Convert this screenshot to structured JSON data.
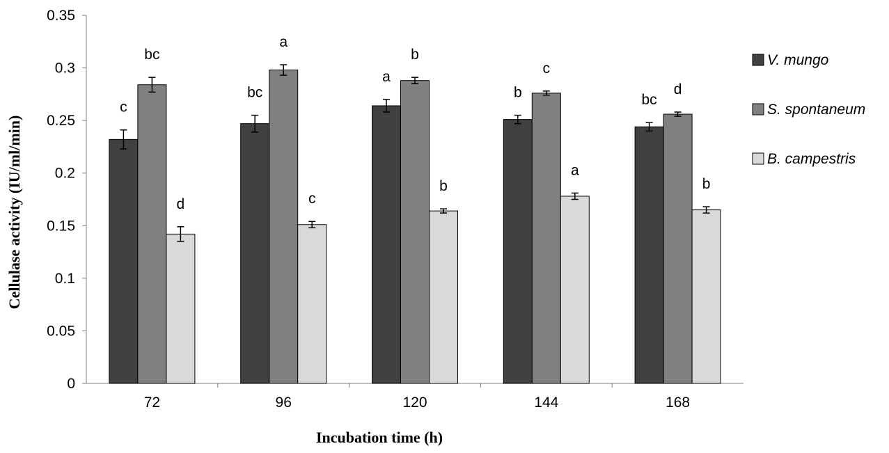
{
  "chart_data": {
    "type": "bar",
    "title": "",
    "xlabel": "Incubation time (h)",
    "ylabel": "Cellulase activity (IU/ml/min)",
    "categories": [
      "72",
      "96",
      "120",
      "144",
      "168"
    ],
    "ylim": [
      0,
      0.35
    ],
    "yticks": [
      "0",
      "0.05",
      "0.1",
      "0.15",
      "0.2",
      "0.25",
      "0.3",
      "0.35"
    ],
    "grid": false,
    "legend_position": "right",
    "series": [
      {
        "name": "V. mungo",
        "color": "#404040",
        "values": [
          0.232,
          0.247,
          0.264,
          0.251,
          0.244
        ],
        "errors": [
          0.009,
          0.008,
          0.006,
          0.004,
          0.004
        ],
        "labels": [
          "c",
          "bc",
          "a",
          "b",
          "bc"
        ]
      },
      {
        "name": "S. spontaneum",
        "color": "#808080",
        "values": [
          0.284,
          0.298,
          0.288,
          0.276,
          0.256
        ],
        "errors": [
          0.007,
          0.005,
          0.003,
          0.002,
          0.002
        ],
        "labels": [
          "bc",
          "a",
          "b",
          "c",
          "d"
        ]
      },
      {
        "name": "B. campestris",
        "color": "#d9d9d9",
        "values": [
          0.142,
          0.151,
          0.164,
          0.178,
          0.165
        ],
        "errors": [
          0.007,
          0.003,
          0.002,
          0.003,
          0.003
        ],
        "labels": [
          "d",
          "c",
          "b",
          "a",
          "b"
        ]
      }
    ]
  }
}
